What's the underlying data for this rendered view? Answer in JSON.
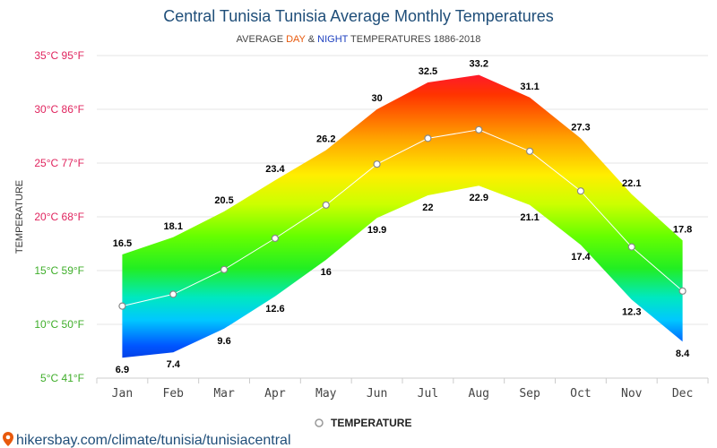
{
  "chart_data": {
    "type": "area",
    "title": "Central Tunisia Tunisia Average Monthly Temperatures",
    "subtitle": {
      "prefix": "AVERAGE ",
      "day": "DAY",
      "amp": " & ",
      "night": "NIGHT",
      "suffix": " TEMPERATURES 1886-2018",
      "day_color": "#e8590c",
      "night_color": "#1c3fbf"
    },
    "ylabel": "TEMPERATURE",
    "xlabel": "",
    "categories": [
      "Jan",
      "Feb",
      "Mar",
      "Apr",
      "May",
      "Jun",
      "Jul",
      "Aug",
      "Sep",
      "Oct",
      "Nov",
      "Dec"
    ],
    "series": [
      {
        "role": "day",
        "values": [
          16.5,
          18.1,
          20.5,
          23.4,
          26.2,
          30,
          32.5,
          33.2,
          31.1,
          27.3,
          22.1,
          17.8
        ]
      },
      {
        "role": "night",
        "values": [
          6.9,
          7.4,
          9.6,
          12.6,
          16,
          19.9,
          22,
          22.9,
          21.1,
          17.4,
          12.3,
          8.4
        ]
      },
      {
        "name": "TEMPERATURE",
        "role": "average",
        "values": [
          11.7,
          12.8,
          15.1,
          18.0,
          21.1,
          24.9,
          27.3,
          28.1,
          26.1,
          22.4,
          17.2,
          13.1
        ]
      }
    ],
    "ylim": [
      5,
      35
    ],
    "yticks": [
      {
        "value": 35,
        "label": "35°C 95°F",
        "color": "#e0245e"
      },
      {
        "value": 30,
        "label": "30°C 86°F",
        "color": "#e0245e"
      },
      {
        "value": 25,
        "label": "25°C 77°F",
        "color": "#e0245e"
      },
      {
        "value": 20,
        "label": "20°C 68°F",
        "color": "#e0245e"
      },
      {
        "value": 15,
        "label": "15°C 59°F",
        "color": "#3fae2a"
      },
      {
        "value": 10,
        "label": "10°C 50°F",
        "color": "#3fae2a"
      },
      {
        "value": 5,
        "label": "5°C 41°F",
        "color": "#3fae2a"
      }
    ],
    "grid": true,
    "legend_position": "bottom-center",
    "legend_label": "TEMPERATURE"
  },
  "footer": {
    "source": "hikersbay.com/climate/tunisia/tunisiacentral",
    "pin_color": "#e8590c"
  }
}
